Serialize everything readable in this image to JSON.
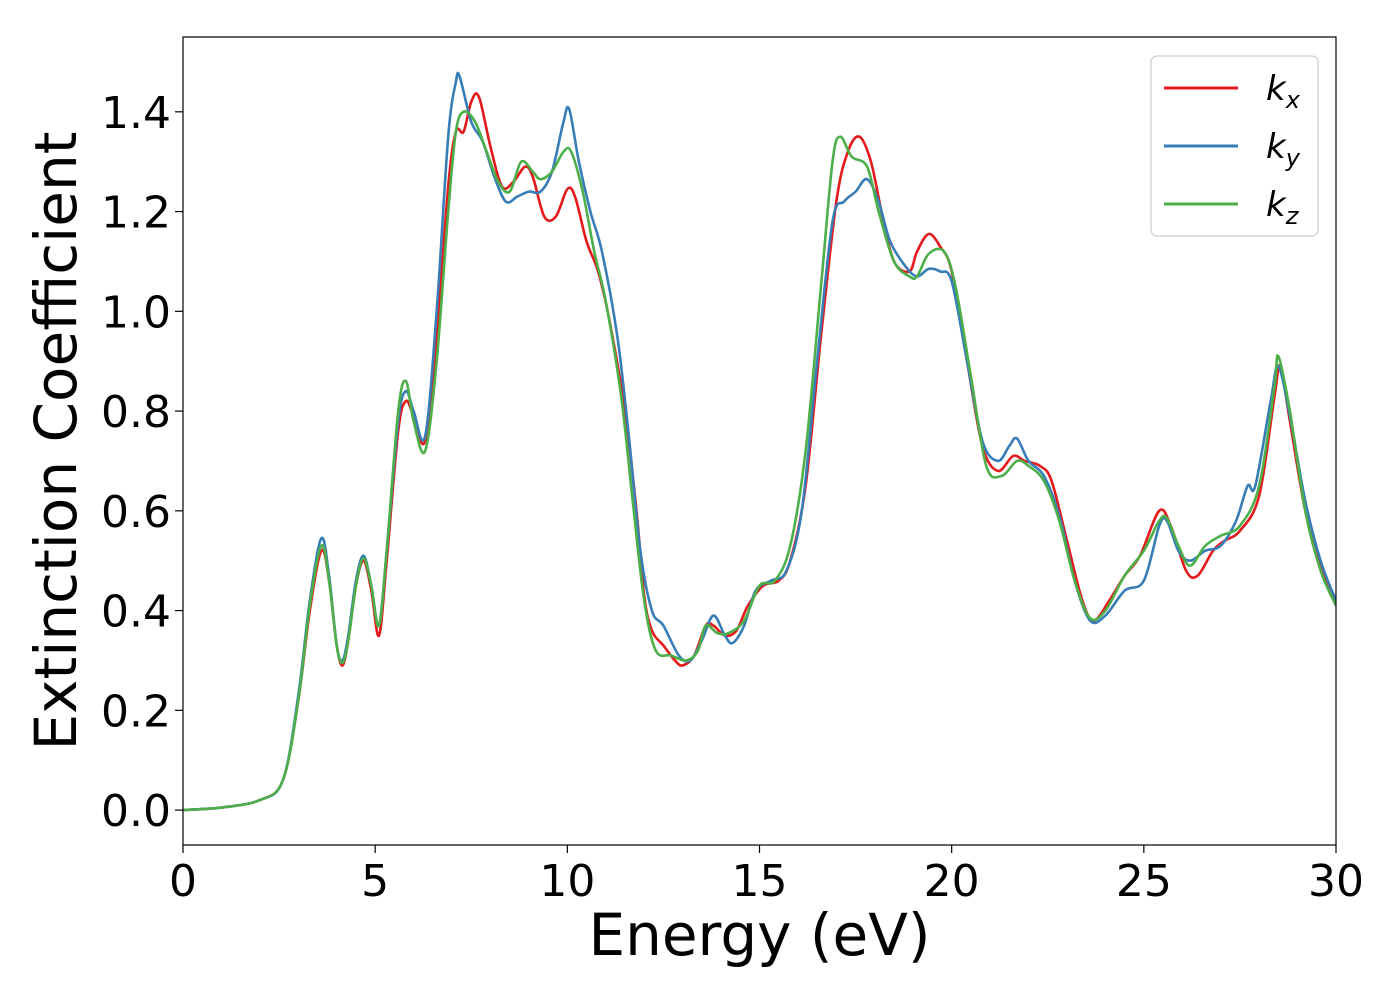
{
  "chart_data": {
    "type": "line",
    "title": "",
    "xlabel": "Energy (eV)",
    "ylabel": "Extinction Coefficient",
    "xlim": [
      0,
      30
    ],
    "ylim": [
      -0.07,
      1.55
    ],
    "xticks": [
      0,
      5,
      10,
      15,
      20,
      25,
      30
    ],
    "xtick_labels": [
      "0",
      "5",
      "10",
      "15",
      "20",
      "25",
      "30"
    ],
    "yticks": [
      0.0,
      0.2,
      0.4,
      0.6,
      0.8,
      1.0,
      1.2,
      1.4
    ],
    "ytick_labels": [
      "0.0",
      "0.2",
      "0.4",
      "0.6",
      "0.8",
      "1.0",
      "1.2",
      "1.4"
    ],
    "grid": false,
    "legend_position": "top-right",
    "series": [
      {
        "name": "k",
        "subscript": "x",
        "color": "#e41a1c",
        "points": [
          [
            0,
            0
          ],
          [
            1,
            0.005
          ],
          [
            2,
            0.02
          ],
          [
            2.6,
            0.06
          ],
          [
            3,
            0.22
          ],
          [
            3.3,
            0.4
          ],
          [
            3.6,
            0.52
          ],
          [
            3.8,
            0.46
          ],
          [
            4.0,
            0.33
          ],
          [
            4.15,
            0.29
          ],
          [
            4.3,
            0.34
          ],
          [
            4.5,
            0.45
          ],
          [
            4.7,
            0.5
          ],
          [
            4.9,
            0.44
          ],
          [
            5.1,
            0.35
          ],
          [
            5.3,
            0.5
          ],
          [
            5.6,
            0.76
          ],
          [
            5.8,
            0.82
          ],
          [
            6.0,
            0.79
          ],
          [
            6.3,
            0.74
          ],
          [
            6.6,
            0.95
          ],
          [
            6.9,
            1.25
          ],
          [
            7.1,
            1.36
          ],
          [
            7.3,
            1.36
          ],
          [
            7.5,
            1.42
          ],
          [
            7.7,
            1.43
          ],
          [
            8.0,
            1.33
          ],
          [
            8.3,
            1.25
          ],
          [
            8.6,
            1.26
          ],
          [
            8.9,
            1.29
          ],
          [
            9.1,
            1.27
          ],
          [
            9.4,
            1.19
          ],
          [
            9.7,
            1.19
          ],
          [
            10.0,
            1.245
          ],
          [
            10.2,
            1.23
          ],
          [
            10.5,
            1.14
          ],
          [
            10.8,
            1.08
          ],
          [
            11.1,
            0.98
          ],
          [
            11.5,
            0.8
          ],
          [
            11.8,
            0.6
          ],
          [
            12.0,
            0.43
          ],
          [
            12.2,
            0.36
          ],
          [
            12.5,
            0.33
          ],
          [
            12.8,
            0.3
          ],
          [
            13.0,
            0.29
          ],
          [
            13.3,
            0.31
          ],
          [
            13.6,
            0.37
          ],
          [
            13.8,
            0.37
          ],
          [
            14.1,
            0.35
          ],
          [
            14.4,
            0.36
          ],
          [
            14.7,
            0.41
          ],
          [
            15.1,
            0.45
          ],
          [
            15.5,
            0.46
          ],
          [
            15.8,
            0.5
          ],
          [
            16.2,
            0.65
          ],
          [
            16.6,
            0.95
          ],
          [
            17.0,
            1.22
          ],
          [
            17.3,
            1.32
          ],
          [
            17.6,
            1.35
          ],
          [
            17.9,
            1.3
          ],
          [
            18.2,
            1.19
          ],
          [
            18.5,
            1.1
          ],
          [
            18.9,
            1.08
          ],
          [
            19.1,
            1.12
          ],
          [
            19.4,
            1.155
          ],
          [
            19.7,
            1.13
          ],
          [
            20.0,
            1.08
          ],
          [
            20.4,
            0.9
          ],
          [
            20.8,
            0.73
          ],
          [
            21.2,
            0.68
          ],
          [
            21.6,
            0.71
          ],
          [
            21.9,
            0.7
          ],
          [
            22.3,
            0.69
          ],
          [
            22.6,
            0.66
          ],
          [
            23.0,
            0.54
          ],
          [
            23.4,
            0.42
          ],
          [
            23.7,
            0.38
          ],
          [
            24.1,
            0.42
          ],
          [
            24.5,
            0.47
          ],
          [
            24.9,
            0.51
          ],
          [
            25.4,
            0.6
          ],
          [
            25.7,
            0.57
          ],
          [
            26.1,
            0.48
          ],
          [
            26.4,
            0.47
          ],
          [
            26.8,
            0.52
          ],
          [
            27.1,
            0.54
          ],
          [
            27.5,
            0.56
          ],
          [
            28.0,
            0.63
          ],
          [
            28.4,
            0.83
          ],
          [
            28.55,
            0.89
          ],
          [
            28.8,
            0.78
          ],
          [
            29.2,
            0.6
          ],
          [
            29.6,
            0.49
          ],
          [
            30.0,
            0.41
          ]
        ]
      },
      {
        "name": "k",
        "subscript": "y",
        "color": "#377eb8",
        "points": [
          [
            0,
            0
          ],
          [
            1,
            0.005
          ],
          [
            2,
            0.02
          ],
          [
            2.6,
            0.06
          ],
          [
            3,
            0.23
          ],
          [
            3.3,
            0.42
          ],
          [
            3.6,
            0.545
          ],
          [
            3.8,
            0.47
          ],
          [
            4.0,
            0.33
          ],
          [
            4.15,
            0.3
          ],
          [
            4.3,
            0.35
          ],
          [
            4.5,
            0.46
          ],
          [
            4.7,
            0.51
          ],
          [
            4.9,
            0.45
          ],
          [
            5.1,
            0.37
          ],
          [
            5.3,
            0.52
          ],
          [
            5.6,
            0.78
          ],
          [
            5.8,
            0.84
          ],
          [
            6.0,
            0.8
          ],
          [
            6.3,
            0.75
          ],
          [
            6.6,
            1.0
          ],
          [
            6.9,
            1.35
          ],
          [
            7.1,
            1.46
          ],
          [
            7.2,
            1.47
          ],
          [
            7.5,
            1.38
          ],
          [
            7.8,
            1.34
          ],
          [
            8.1,
            1.27
          ],
          [
            8.4,
            1.22
          ],
          [
            8.7,
            1.23
          ],
          [
            9.0,
            1.24
          ],
          [
            9.3,
            1.24
          ],
          [
            9.6,
            1.28
          ],
          [
            9.9,
            1.38
          ],
          [
            10.05,
            1.405
          ],
          [
            10.3,
            1.3
          ],
          [
            10.6,
            1.2
          ],
          [
            10.9,
            1.12
          ],
          [
            11.3,
            0.95
          ],
          [
            11.6,
            0.75
          ],
          [
            11.9,
            0.52
          ],
          [
            12.2,
            0.4
          ],
          [
            12.5,
            0.37
          ],
          [
            12.9,
            0.31
          ],
          [
            13.2,
            0.3
          ],
          [
            13.5,
            0.34
          ],
          [
            13.8,
            0.39
          ],
          [
            14.1,
            0.35
          ],
          [
            14.3,
            0.335
          ],
          [
            14.6,
            0.37
          ],
          [
            14.9,
            0.44
          ],
          [
            15.3,
            0.46
          ],
          [
            15.7,
            0.48
          ],
          [
            16.1,
            0.6
          ],
          [
            16.5,
            0.9
          ],
          [
            16.9,
            1.18
          ],
          [
            17.2,
            1.22
          ],
          [
            17.5,
            1.24
          ],
          [
            17.8,
            1.265
          ],
          [
            18.1,
            1.22
          ],
          [
            18.4,
            1.14
          ],
          [
            18.8,
            1.09
          ],
          [
            19.1,
            1.07
          ],
          [
            19.4,
            1.085
          ],
          [
            19.7,
            1.08
          ],
          [
            20.0,
            1.06
          ],
          [
            20.4,
            0.9
          ],
          [
            20.8,
            0.74
          ],
          [
            21.2,
            0.7
          ],
          [
            21.5,
            0.73
          ],
          [
            21.7,
            0.745
          ],
          [
            22.0,
            0.7
          ],
          [
            22.4,
            0.67
          ],
          [
            22.8,
            0.59
          ],
          [
            23.2,
            0.46
          ],
          [
            23.6,
            0.38
          ],
          [
            24.0,
            0.39
          ],
          [
            24.5,
            0.44
          ],
          [
            25.0,
            0.46
          ],
          [
            25.4,
            0.57
          ],
          [
            25.6,
            0.58
          ],
          [
            25.9,
            0.52
          ],
          [
            26.2,
            0.5
          ],
          [
            26.6,
            0.52
          ],
          [
            27.0,
            0.53
          ],
          [
            27.4,
            0.58
          ],
          [
            27.7,
            0.65
          ],
          [
            27.9,
            0.65
          ],
          [
            28.3,
            0.82
          ],
          [
            28.5,
            0.89
          ],
          [
            28.8,
            0.79
          ],
          [
            29.2,
            0.62
          ],
          [
            29.6,
            0.5
          ],
          [
            30.0,
            0.42
          ]
        ]
      },
      {
        "name": "k",
        "subscript": "z",
        "color": "#4daf4a",
        "points": [
          [
            0,
            0
          ],
          [
            1,
            0.005
          ],
          [
            2,
            0.02
          ],
          [
            2.6,
            0.06
          ],
          [
            3,
            0.22
          ],
          [
            3.3,
            0.41
          ],
          [
            3.6,
            0.53
          ],
          [
            3.8,
            0.46
          ],
          [
            4.0,
            0.33
          ],
          [
            4.15,
            0.295
          ],
          [
            4.3,
            0.34
          ],
          [
            4.5,
            0.45
          ],
          [
            4.7,
            0.505
          ],
          [
            4.9,
            0.45
          ],
          [
            5.1,
            0.37
          ],
          [
            5.3,
            0.52
          ],
          [
            5.6,
            0.8
          ],
          [
            5.8,
            0.86
          ],
          [
            6.0,
            0.78
          ],
          [
            6.3,
            0.72
          ],
          [
            6.6,
            0.9
          ],
          [
            6.9,
            1.2
          ],
          [
            7.1,
            1.36
          ],
          [
            7.3,
            1.4
          ],
          [
            7.6,
            1.38
          ],
          [
            7.9,
            1.32
          ],
          [
            8.2,
            1.26
          ],
          [
            8.5,
            1.24
          ],
          [
            8.8,
            1.3
          ],
          [
            9.1,
            1.28
          ],
          [
            9.3,
            1.265
          ],
          [
            9.6,
            1.28
          ],
          [
            9.9,
            1.32
          ],
          [
            10.1,
            1.32
          ],
          [
            10.4,
            1.24
          ],
          [
            10.7,
            1.12
          ],
          [
            11.0,
            1.02
          ],
          [
            11.4,
            0.83
          ],
          [
            11.7,
            0.62
          ],
          [
            12.0,
            0.42
          ],
          [
            12.3,
            0.32
          ],
          [
            12.7,
            0.31
          ],
          [
            13.1,
            0.3
          ],
          [
            13.4,
            0.32
          ],
          [
            13.6,
            0.37
          ],
          [
            13.9,
            0.355
          ],
          [
            14.2,
            0.355
          ],
          [
            14.6,
            0.38
          ],
          [
            15.0,
            0.45
          ],
          [
            15.4,
            0.46
          ],
          [
            15.8,
            0.53
          ],
          [
            16.2,
            0.72
          ],
          [
            16.6,
            1.05
          ],
          [
            16.9,
            1.3
          ],
          [
            17.1,
            1.35
          ],
          [
            17.4,
            1.31
          ],
          [
            17.8,
            1.29
          ],
          [
            18.1,
            1.2
          ],
          [
            18.5,
            1.1
          ],
          [
            18.9,
            1.07
          ],
          [
            19.1,
            1.07
          ],
          [
            19.4,
            1.115
          ],
          [
            19.8,
            1.12
          ],
          [
            20.1,
            1.05
          ],
          [
            20.5,
            0.87
          ],
          [
            20.9,
            0.69
          ],
          [
            21.3,
            0.67
          ],
          [
            21.7,
            0.7
          ],
          [
            22.0,
            0.69
          ],
          [
            22.4,
            0.66
          ],
          [
            22.8,
            0.58
          ],
          [
            23.2,
            0.46
          ],
          [
            23.6,
            0.385
          ],
          [
            24.0,
            0.4
          ],
          [
            24.5,
            0.47
          ],
          [
            25.0,
            0.52
          ],
          [
            25.4,
            0.58
          ],
          [
            25.6,
            0.585
          ],
          [
            25.9,
            0.53
          ],
          [
            26.2,
            0.49
          ],
          [
            26.6,
            0.53
          ],
          [
            27.0,
            0.55
          ],
          [
            27.5,
            0.57
          ],
          [
            28.0,
            0.65
          ],
          [
            28.4,
            0.85
          ],
          [
            28.5,
            0.91
          ],
          [
            28.8,
            0.8
          ],
          [
            29.2,
            0.6
          ],
          [
            29.6,
            0.48
          ],
          [
            30.0,
            0.41
          ]
        ]
      }
    ]
  }
}
